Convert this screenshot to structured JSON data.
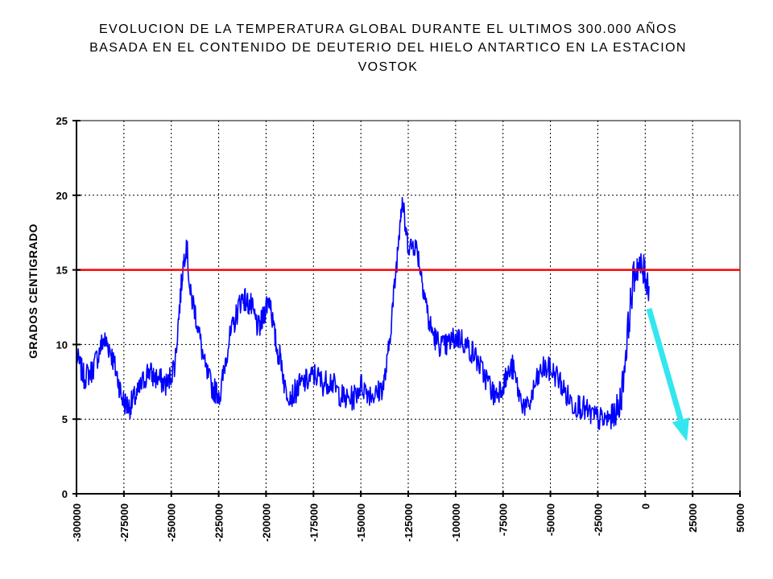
{
  "chart_data": {
    "type": "line",
    "title": [
      "EVOLUCION DE LA TEMPERATURA GLOBAL DURANTE EL ULTIMOS 300.000 AÑOS",
      "BASADA EN EL CONTENIDO DE DEUTERIO DEL HIELO ANTARTICO EN LA ESTACION",
      "VOSTOK"
    ],
    "xlabel": "",
    "ylabel": "GRADOS CENTIGRADO",
    "xlim": [
      -300000,
      50000
    ],
    "ylim": [
      0,
      25
    ],
    "x_ticks": [
      -300000,
      -275000,
      -250000,
      -225000,
      -200000,
      -175000,
      -150000,
      -125000,
      -100000,
      -75000,
      -50000,
      -25000,
      0,
      25000,
      50000
    ],
    "y_ticks": [
      0,
      5,
      10,
      15,
      20,
      25
    ],
    "grid": true,
    "colors": {
      "series": "#0000ff",
      "reference": "#ff0000",
      "arrow": "#33e6f0"
    },
    "series": [
      {
        "color": "#0000ff",
        "x": [
          -300000,
          -296000,
          -292000,
          -288000,
          -286000,
          -284000,
          -282000,
          -280000,
          -278000,
          -276000,
          -274000,
          -272000,
          -270000,
          -268000,
          -266000,
          -262000,
          -260000,
          -256000,
          -252000,
          -248000,
          -246000,
          -244000,
          -242000,
          -240000,
          -238000,
          -236000,
          -232000,
          -228000,
          -224000,
          -222000,
          -220000,
          -216000,
          -214000,
          -212000,
          -210000,
          -208000,
          -206000,
          -204000,
          -202000,
          -200000,
          -198000,
          -196000,
          -194000,
          -192000,
          -190000,
          -186000,
          -182000,
          -178000,
          -174000,
          -170000,
          -166000,
          -162000,
          -158000,
          -154000,
          -150000,
          -146000,
          -142000,
          -138000,
          -136000,
          -134000,
          -132000,
          -130000,
          -129000,
          -128000,
          -126000,
          -124000,
          -122000,
          -120000,
          -118000,
          -116000,
          -114000,
          -112000,
          -110000,
          -106000,
          -102000,
          -98000,
          -94000,
          -90000,
          -86000,
          -82000,
          -80000,
          -78000,
          -74000,
          -70000,
          -66000,
          -62000,
          -58000,
          -54000,
          -50000,
          -46000,
          -42000,
          -38000,
          -34000,
          -30000,
          -26000,
          -22000,
          -18000,
          -14000,
          -12000,
          -10000,
          -8000,
          -6000,
          -4000,
          -2000,
          0,
          2000
        ],
        "y": [
          9.2,
          7.8,
          8.2,
          9.5,
          10.3,
          10.1,
          9.6,
          8.6,
          7.6,
          6.4,
          6.0,
          5.8,
          6.3,
          6.6,
          7.2,
          8.3,
          7.9,
          7.6,
          7.3,
          8.8,
          12.0,
          15.0,
          17.0,
          13.3,
          12.6,
          11.2,
          8.3,
          7.0,
          6.7,
          8.5,
          10.0,
          11.8,
          12.8,
          13.2,
          12.8,
          12.6,
          11.8,
          11.0,
          11.6,
          12.6,
          13.2,
          11.0,
          9.5,
          9.0,
          7.0,
          6.6,
          7.3,
          7.6,
          8.0,
          7.4,
          7.6,
          6.8,
          6.3,
          6.4,
          7.3,
          6.8,
          6.6,
          7.3,
          8.8,
          11.5,
          14.2,
          17.2,
          19.0,
          19.6,
          17.2,
          16.5,
          16.8,
          16.2,
          14.6,
          13.2,
          11.4,
          10.8,
          10.2,
          9.8,
          10.3,
          10.5,
          9.9,
          9.3,
          8.2,
          7.3,
          6.6,
          6.8,
          7.6,
          8.5,
          6.4,
          5.6,
          7.3,
          8.4,
          8.3,
          7.8,
          6.7,
          6.0,
          5.9,
          5.4,
          5.1,
          4.9,
          5.1,
          5.6,
          7.2,
          9.8,
          12.4,
          14.6,
          15.4,
          15.0,
          14.7,
          13.9
        ]
      }
    ],
    "reference_line": {
      "y": 15
    },
    "arrow": {
      "from": {
        "x": 2000,
        "y": 12.4
      },
      "to": {
        "x": 22000,
        "y": 3.5
      }
    }
  }
}
